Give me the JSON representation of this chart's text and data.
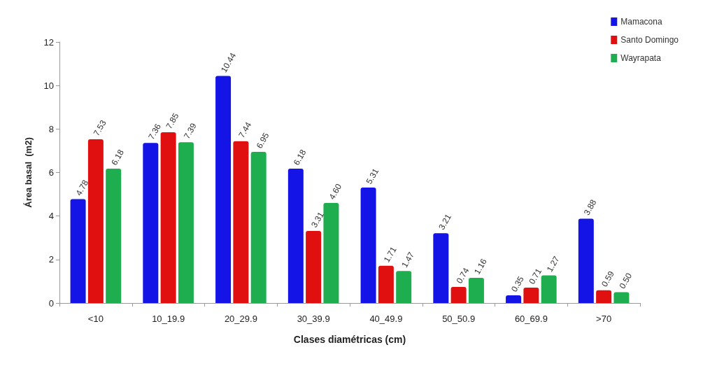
{
  "chart_data": {
    "type": "bar",
    "xlabel": "Clases diamétricas (cm)",
    "ylabel": "Área basal  (m2)",
    "categories": [
      "<10",
      "10_19.9",
      "20_29.9",
      "30_39.9",
      "40_49.9",
      "50_50.9",
      "60_69.9",
      ">70"
    ],
    "series": [
      {
        "name": "Mamacona",
        "color": "#1414e6",
        "values": [
          4.78,
          7.36,
          10.44,
          6.18,
          5.31,
          3.21,
          0.35,
          3.88
        ],
        "value_labels": [
          "4.78",
          "7.36",
          "10.44",
          "6.18",
          "5.31",
          "3.21",
          "0.35",
          "3.88"
        ]
      },
      {
        "name": "Santo Domingo",
        "color": "#e01010",
        "values": [
          7.53,
          7.85,
          7.44,
          3.31,
          1.71,
          0.74,
          0.71,
          0.59
        ],
        "value_labels": [
          "7.53",
          "7.85",
          "7.44",
          "3.31",
          "1.71",
          "0.74",
          "0.71",
          "0.59"
        ]
      },
      {
        "name": "Wayrapata",
        "color": "#1fae4f",
        "values": [
          6.18,
          7.39,
          6.95,
          4.6,
          1.47,
          1.16,
          1.27,
          0.5
        ],
        "value_labels": [
          "6.18",
          "7.39",
          "6.95",
          "4.60",
          "1.47",
          "1.16",
          "1.27",
          "0.50"
        ]
      }
    ],
    "ylim": [
      0,
      12
    ],
    "yticks": [
      0,
      2,
      4,
      6,
      8,
      10,
      12
    ],
    "grid": false,
    "legend": "top right"
  }
}
